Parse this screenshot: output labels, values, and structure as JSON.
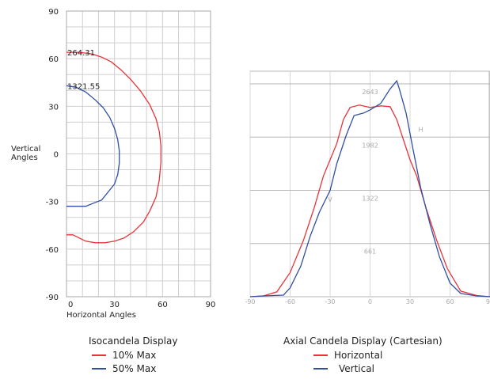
{
  "chart_data": [
    {
      "type": "line",
      "title": "Isocandela Display",
      "xlabel": "Horizontal Angles",
      "ylabel": "Vertical Angles",
      "xlim": [
        0,
        90
      ],
      "ylim": [
        -90,
        90
      ],
      "xticks": [
        "0",
        "30",
        "60",
        "90"
      ],
      "yticks": [
        "90",
        "60",
        "30",
        "0",
        "-30",
        "-60",
        "-90"
      ],
      "grid": true,
      "legend_position": "bottom",
      "series": [
        {
          "name": "10% Max",
          "color": "#e8333a",
          "label": "264.31",
          "points": [
            [
              0,
              64
            ],
            [
              8,
              64
            ],
            [
              16,
              63
            ],
            [
              22,
              61
            ],
            [
              28,
              58
            ],
            [
              34,
              53
            ],
            [
              40,
              47
            ],
            [
              46,
              40
            ],
            [
              52,
              31
            ],
            [
              56,
              22
            ],
            [
              58,
              14
            ],
            [
              59,
              5
            ],
            [
              59,
              -5
            ],
            [
              58,
              -16
            ],
            [
              56,
              -27
            ],
            [
              52,
              -36
            ],
            [
              48,
              -43
            ],
            [
              42,
              -49
            ],
            [
              36,
              -53
            ],
            [
              30,
              -55
            ],
            [
              24,
              -56
            ],
            [
              18,
              -56
            ],
            [
              12,
              -55
            ],
            [
              8,
              -53
            ],
            [
              4,
              -51
            ],
            [
              0,
              -51
            ]
          ]
        },
        {
          "name": "50% Max",
          "color": "#2f4fa3",
          "label": "1321.55",
          "points": [
            [
              0,
              43
            ],
            [
              6,
              42
            ],
            [
              12,
              39
            ],
            [
              18,
              34
            ],
            [
              23,
              29
            ],
            [
              27,
              23
            ],
            [
              30,
              16
            ],
            [
              32,
              9
            ],
            [
              33,
              2
            ],
            [
              33,
              -6
            ],
            [
              32,
              -13
            ],
            [
              30,
              -19
            ],
            [
              26,
              -24
            ],
            [
              22,
              -29
            ],
            [
              17,
              -31
            ],
            [
              12,
              -33
            ],
            [
              6,
              -33
            ],
            [
              0,
              -33
            ]
          ]
        }
      ]
    },
    {
      "type": "line",
      "title": "Axial Candela Display (Cartesian)",
      "xlim": [
        -90,
        90
      ],
      "ylim": [
        0,
        2800
      ],
      "xticks": [
        "-90",
        "-60",
        "-30",
        "0",
        "30",
        "60",
        "90"
      ],
      "yticks": [
        "661",
        "1322",
        "1982",
        "2643"
      ],
      "grid": true,
      "legend_position": "bottom",
      "series": [
        {
          "name": "Horizontal",
          "color": "#e8333a",
          "marker": "H",
          "points": [
            [
              -90,
              0
            ],
            [
              -80,
              10
            ],
            [
              -70,
              60
            ],
            [
              -60,
              300
            ],
            [
              -50,
              700
            ],
            [
              -42,
              1100
            ],
            [
              -35,
              1500
            ],
            [
              -30,
              1700
            ],
            [
              -25,
              1900
            ],
            [
              -20,
              2200
            ],
            [
              -15,
              2350
            ],
            [
              -8,
              2380
            ],
            [
              0,
              2350
            ],
            [
              8,
              2370
            ],
            [
              15,
              2360
            ],
            [
              20,
              2200
            ],
            [
              25,
              1950
            ],
            [
              30,
              1700
            ],
            [
              35,
              1500
            ],
            [
              42,
              1100
            ],
            [
              50,
              700
            ],
            [
              58,
              350
            ],
            [
              68,
              70
            ],
            [
              80,
              15
            ],
            [
              90,
              0
            ]
          ]
        },
        {
          "name": "Vertical",
          "color": "#2f4fa3",
          "marker": "V",
          "points": [
            [
              -90,
              0
            ],
            [
              -80,
              10
            ],
            [
              -65,
              20
            ],
            [
              -60,
              110
            ],
            [
              -52,
              380
            ],
            [
              -45,
              750
            ],
            [
              -38,
              1050
            ],
            [
              -30,
              1320
            ],
            [
              -25,
              1650
            ],
            [
              -18,
              2000
            ],
            [
              -12,
              2250
            ],
            [
              -5,
              2280
            ],
            [
              0,
              2320
            ],
            [
              8,
              2400
            ],
            [
              15,
              2580
            ],
            [
              20,
              2680
            ],
            [
              22,
              2580
            ],
            [
              27,
              2280
            ],
            [
              32,
              1850
            ],
            [
              38,
              1350
            ],
            [
              45,
              900
            ],
            [
              52,
              500
            ],
            [
              60,
              170
            ],
            [
              68,
              40
            ],
            [
              80,
              10
            ],
            [
              90,
              0
            ]
          ]
        }
      ]
    }
  ],
  "caption_left": "Isocandela Display",
  "caption_right": "Axial Candela Display (Cartesian)",
  "legend_left": [
    {
      "label": "10% Max",
      "color": "#e8333a"
    },
    {
      "label": "50% Max",
      "color": "#2f4fa3"
    }
  ],
  "legend_right": [
    {
      "label": "Horizontal",
      "color": "#e8333a"
    },
    {
      "label": "Vertical",
      "color": "#2f4fa3"
    }
  ]
}
